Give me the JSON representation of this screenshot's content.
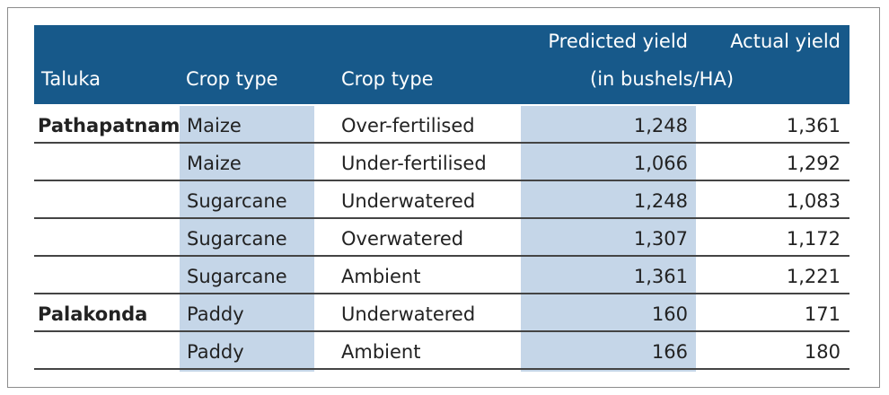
{
  "table": {
    "header": {
      "taluka": "Taluka",
      "crop": "Crop type",
      "variant": "Crop type",
      "predicted": "Predicted yield",
      "actual": "Actual yield",
      "unit": "(in bushels/HA)"
    },
    "groups": [
      {
        "taluka": "Pathapatnam",
        "rows": [
          [
            "Maize",
            "Over-fertilised",
            "1,248",
            "1,361"
          ],
          [
            "Maize",
            "Under-fertilised",
            "1,066",
            "1,292"
          ],
          [
            "Sugarcane",
            "Underwatered",
            "1,248",
            "1,083"
          ],
          [
            "Sugarcane",
            "Overwatered",
            "1,307",
            "1,172"
          ],
          [
            "Sugarcane",
            "Ambient",
            "1,361",
            "1,221"
          ]
        ]
      },
      {
        "taluka": "Palakonda",
        "rows": [
          [
            "Paddy",
            "Underwatered",
            "160",
            "171"
          ],
          [
            "Paddy",
            "Ambient",
            "166",
            "180"
          ]
        ]
      }
    ]
  }
}
